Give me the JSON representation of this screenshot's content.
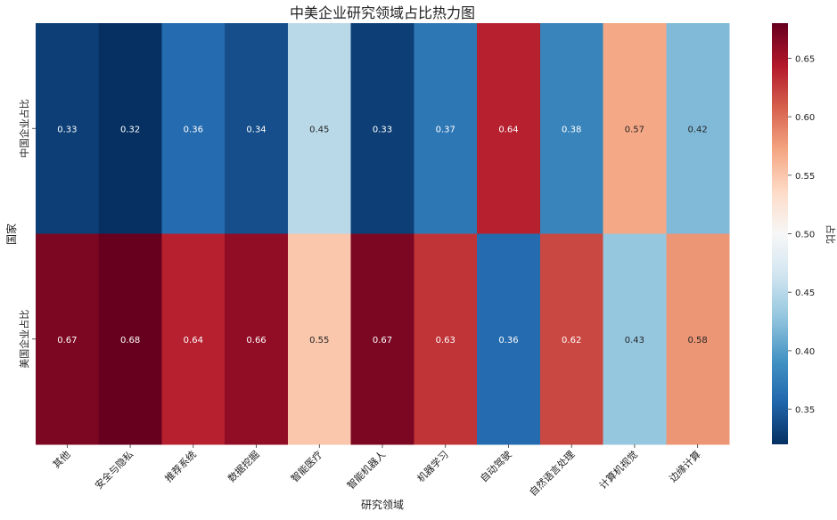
{
  "chart_data": {
    "type": "heatmap",
    "title": "中美企业研究领域占比热力图",
    "xlabel": "研究领域",
    "ylabel": "国家",
    "x_categories": [
      "其他",
      "安全与隐私",
      "推荐系统",
      "数据挖掘",
      "智能医疗",
      "智能机器人",
      "机器学习",
      "自动驾驶",
      "自然语言处理",
      "计算机视觉",
      "边缘计算"
    ],
    "y_categories": [
      "中国企业占比",
      "美国企业占比"
    ],
    "values": [
      [
        0.33,
        0.32,
        0.36,
        0.34,
        0.45,
        0.33,
        0.37,
        0.64,
        0.38,
        0.57,
        0.42
      ],
      [
        0.67,
        0.68,
        0.64,
        0.66,
        0.55,
        0.67,
        0.63,
        0.36,
        0.62,
        0.43,
        0.58
      ]
    ],
    "colorbar": {
      "label": "占比",
      "min": 0.32,
      "max": 0.68,
      "ticks": [
        0.35,
        0.4,
        0.45,
        0.5,
        0.55,
        0.6,
        0.65
      ],
      "tick_labels": [
        "0.35",
        "0.40",
        "0.45",
        "0.50",
        "0.55",
        "0.60",
        "0.65"
      ]
    },
    "colormap": "RdBu_r",
    "annotations": true
  }
}
